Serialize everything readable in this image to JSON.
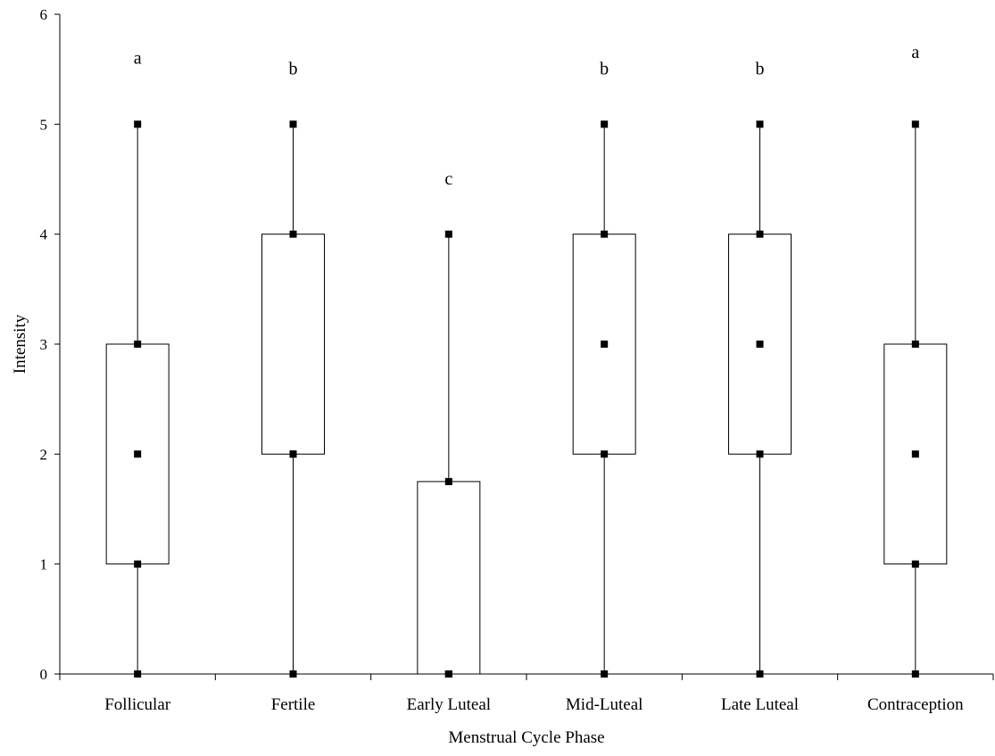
{
  "chart_data": {
    "type": "box",
    "xlabel": "Menstrual Cycle Phase",
    "ylabel": "Intensity",
    "ylim": [
      0,
      6
    ],
    "yticks": [
      "0",
      "1",
      "2",
      "3",
      "4",
      "5",
      "6"
    ],
    "grid": false,
    "categories": [
      "Follicular",
      "Fertile",
      "Early Luteal",
      "Mid-Luteal",
      "Late Luteal",
      "Contraception"
    ],
    "boxes": [
      {
        "min": 0,
        "q1": 1,
        "median": 2,
        "q3": 3,
        "max": 5,
        "letter": "a"
      },
      {
        "min": 0,
        "q1": 2,
        "median": 2,
        "q3": 4,
        "max": 5,
        "letter": "b"
      },
      {
        "min": 0,
        "q1": 0,
        "median": 0,
        "q3": 1.75,
        "max": 4,
        "letter": "c"
      },
      {
        "min": 0,
        "q1": 2,
        "median": 3,
        "q3": 4,
        "max": 5,
        "letter": "b"
      },
      {
        "min": 0,
        "q1": 2,
        "median": 3,
        "q3": 4,
        "max": 5,
        "letter": "b"
      },
      {
        "min": 0,
        "q1": 1,
        "median": 2,
        "q3": 3,
        "max": 5,
        "letter": "a"
      }
    ],
    "letter_values": [
      5.6,
      5.5,
      4.5,
      5.5,
      5.5,
      5.65
    ]
  }
}
